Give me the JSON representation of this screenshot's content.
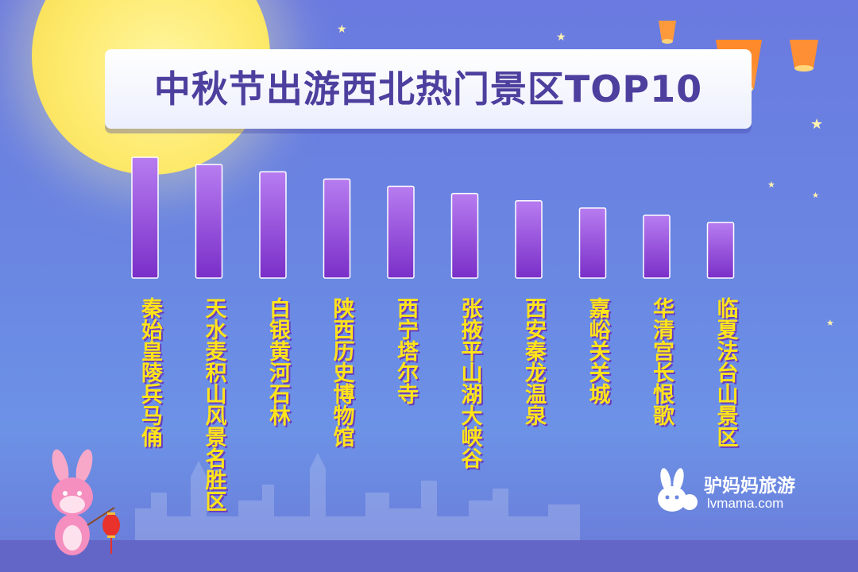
{
  "title": "中秋节出游西北热门景区TOP10",
  "logo": {
    "name": "驴妈妈旅游",
    "url": "lvmama.com"
  },
  "colors": {
    "bar_top": "#b77cf0",
    "bar_bottom": "#7a2fc8",
    "label": "#ffe41a",
    "title": "#4c3f9e"
  },
  "chart_data": {
    "type": "bar",
    "title": "中秋节出游西北热门景区TOP10",
    "categories": [
      "秦始皇陵兵马俑",
      "天水麦积山风景名胜区",
      "白银黄河石林",
      "陕西历史博物馆",
      "西宁塔尔寺",
      "张掖平山湖大峡谷",
      "西安秦龙温泉",
      "嘉峪关关城",
      "华清宫长恨歌",
      "临夏法台山景区"
    ],
    "values": [
      10,
      9.4,
      8.8,
      8.2,
      7.6,
      7.0,
      6.4,
      5.8,
      5.2,
      4.6
    ],
    "xlabel": "",
    "ylabel": "",
    "ylim": [
      0,
      10
    ],
    "grid": false,
    "legend": "none"
  }
}
